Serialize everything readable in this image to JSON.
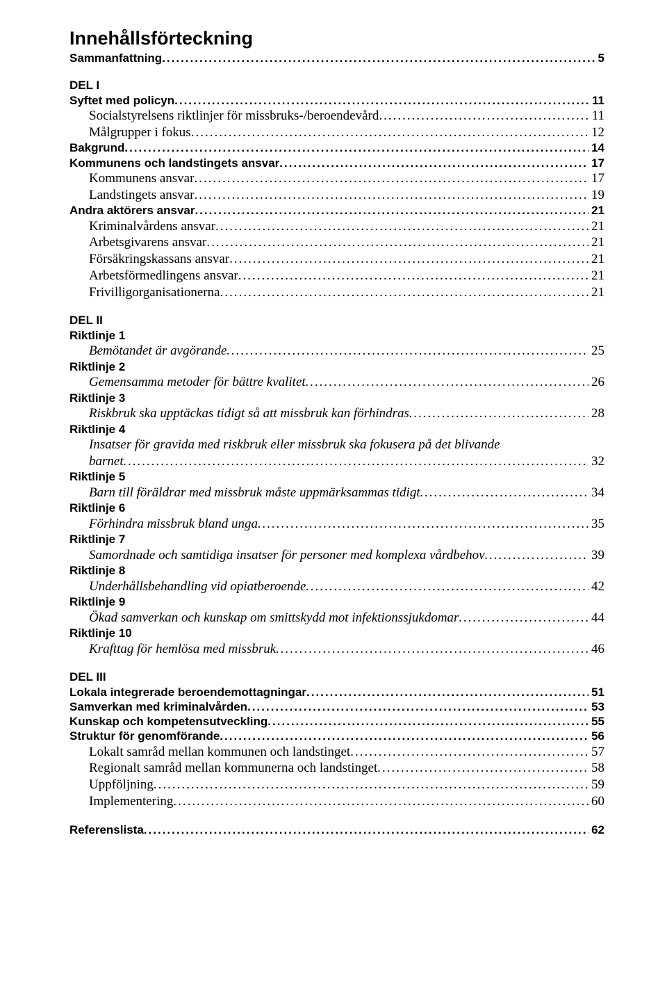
{
  "title": "Innehållsförteckning",
  "entries": [
    {
      "kind": "sans-bold",
      "indent": 0,
      "text": "Sammanfattning",
      "page": "5",
      "italic": false,
      "leader": true
    },
    {
      "kind": "spacer-md"
    },
    {
      "kind": "sans-bold",
      "indent": 0,
      "text": "DEL I",
      "page": "",
      "italic": false,
      "leader": false
    },
    {
      "kind": "sans-bold",
      "indent": 0,
      "text": "Syftet med policyn",
      "page": "11",
      "italic": false,
      "leader": true
    },
    {
      "kind": "serif",
      "indent": 1,
      "text": "Socialstyrelsens riktlinjer för missbruks-/beroendevård",
      "page": "11",
      "italic": false,
      "leader": true
    },
    {
      "kind": "serif",
      "indent": 1,
      "text": "Målgrupper i fokus",
      "page": "12",
      "italic": false,
      "leader": true
    },
    {
      "kind": "sans-bold",
      "indent": 0,
      "text": "Bakgrund",
      "page": "14",
      "italic": false,
      "leader": true
    },
    {
      "kind": "sans-bold",
      "indent": 0,
      "text": "Kommunens och landstingets ansvar",
      "page": "17",
      "italic": false,
      "leader": true
    },
    {
      "kind": "serif",
      "indent": 1,
      "text": "Kommunens ansvar",
      "page": "17",
      "italic": false,
      "leader": true
    },
    {
      "kind": "serif",
      "indent": 1,
      "text": "Landstingets ansvar",
      "page": "19",
      "italic": false,
      "leader": true
    },
    {
      "kind": "sans-bold",
      "indent": 0,
      "text": "Andra aktörers ansvar",
      "page": "21",
      "italic": false,
      "leader": true
    },
    {
      "kind": "serif",
      "indent": 1,
      "text": "Kriminalvårdens ansvar",
      "page": "21",
      "italic": false,
      "leader": true
    },
    {
      "kind": "serif",
      "indent": 1,
      "text": "Arbetsgivarens ansvar",
      "page": "21",
      "italic": false,
      "leader": true
    },
    {
      "kind": "serif",
      "indent": 1,
      "text": "Försäkringskassans ansvar",
      "page": "21",
      "italic": false,
      "leader": true
    },
    {
      "kind": "serif",
      "indent": 1,
      "text": "Arbetsförmedlingens ansvar",
      "page": "21",
      "italic": false,
      "leader": true
    },
    {
      "kind": "serif",
      "indent": 1,
      "text": "Frivilligorganisationerna",
      "page": "21",
      "italic": false,
      "leader": true
    },
    {
      "kind": "spacer-md"
    },
    {
      "kind": "sans-bold",
      "indent": 0,
      "text": "DEL II",
      "page": "",
      "italic": false,
      "leader": false
    },
    {
      "kind": "sans-bold",
      "indent": 0,
      "text": "Riktlinje 1",
      "page": "",
      "italic": false,
      "leader": false
    },
    {
      "kind": "serif",
      "indent": 1,
      "text": "Bemötandet är avgörande",
      "page": "25",
      "italic": true,
      "leader": true
    },
    {
      "kind": "sans-bold",
      "indent": 0,
      "text": "Riktlinje 2",
      "page": "",
      "italic": false,
      "leader": false
    },
    {
      "kind": "serif",
      "indent": 1,
      "text": "Gemensamma metoder för bättre kvalitet",
      "page": "26",
      "italic": true,
      "leader": true
    },
    {
      "kind": "sans-bold",
      "indent": 0,
      "text": "Riktlinje 3",
      "page": "",
      "italic": false,
      "leader": false
    },
    {
      "kind": "serif",
      "indent": 1,
      "text": "Riskbruk ska upptäckas tidigt så  att  missbruk kan förhindras",
      "page": "28",
      "italic": true,
      "leader": true
    },
    {
      "kind": "sans-bold",
      "indent": 0,
      "text": "Riktlinje 4",
      "page": "",
      "italic": false,
      "leader": false
    },
    {
      "kind": "serif-wrap",
      "indent": 1,
      "text": "Insatser för gravida med riskbruk eller missbruk ska fokusera på det blivande barnet",
      "page": "32",
      "italic": true,
      "leader": true
    },
    {
      "kind": "sans-bold",
      "indent": 0,
      "text": "Riktlinje 5",
      "page": "",
      "italic": false,
      "leader": false
    },
    {
      "kind": "serif",
      "indent": 1,
      "text": "Barn till föräldrar med missbruk måste uppmärksammas tidigt",
      "page": "34",
      "italic": true,
      "leader": true
    },
    {
      "kind": "sans-bold",
      "indent": 0,
      "text": "Riktlinje 6",
      "page": "",
      "italic": false,
      "leader": false
    },
    {
      "kind": "serif",
      "indent": 1,
      "text": "Förhindra missbruk bland unga",
      "page": "35",
      "italic": true,
      "leader": true
    },
    {
      "kind": "sans-bold",
      "indent": 0,
      "text": "Riktlinje 7",
      "page": "",
      "italic": false,
      "leader": false
    },
    {
      "kind": "serif",
      "indent": 1,
      "text": "Samordnade och samtidiga insatser för personer med komplexa vårdbehov",
      "page": "39",
      "italic": true,
      "leader": true
    },
    {
      "kind": "sans-bold",
      "indent": 0,
      "text": "Riktlinje 8",
      "page": "",
      "italic": false,
      "leader": false
    },
    {
      "kind": "serif",
      "indent": 1,
      "text": "Underhållsbehandling vid opiatberoende",
      "page": "42",
      "italic": true,
      "leader": true
    },
    {
      "kind": "sans-bold",
      "indent": 0,
      "text": "Riktlinje 9",
      "page": "",
      "italic": false,
      "leader": false
    },
    {
      "kind": "serif",
      "indent": 1,
      "text": "Ökad samverkan och kunskap om smittskydd mot infektionssjukdomar",
      "page": "44",
      "italic": true,
      "leader": true
    },
    {
      "kind": "sans-bold",
      "indent": 0,
      "text": "Riktlinje 10",
      "page": "",
      "italic": false,
      "leader": false
    },
    {
      "kind": "serif",
      "indent": 1,
      "text": "Krafttag för hemlösa med missbruk",
      "page": "46",
      "italic": true,
      "leader": true
    },
    {
      "kind": "spacer-md"
    },
    {
      "kind": "sans-bold",
      "indent": 0,
      "text": "DEL III",
      "page": "",
      "italic": false,
      "leader": false
    },
    {
      "kind": "sans-bold",
      "indent": 0,
      "text": "Lokala integrerade beroendemottagningar",
      "page": "51",
      "italic": false,
      "leader": true
    },
    {
      "kind": "sans-bold",
      "indent": 0,
      "text": "Samverkan med kriminalvården",
      "page": "53",
      "italic": false,
      "leader": true
    },
    {
      "kind": "sans-bold",
      "indent": 0,
      "text": "Kunskap och kompetensutveckling",
      "page": "55",
      "italic": false,
      "leader": true
    },
    {
      "kind": "sans-bold",
      "indent": 0,
      "text": "Struktur för genomförande",
      "page": "56",
      "italic": false,
      "leader": true
    },
    {
      "kind": "serif",
      "indent": 1,
      "text": "Lokalt samråd mellan kommunen och landstinget",
      "page": "57",
      "italic": false,
      "leader": true
    },
    {
      "kind": "serif",
      "indent": 1,
      "text": "Regionalt samråd mellan kommunerna och landstinget",
      "page": "58",
      "italic": false,
      "leader": true
    },
    {
      "kind": "serif",
      "indent": 1,
      "text": "Uppföljning",
      "page": "59",
      "italic": false,
      "leader": true
    },
    {
      "kind": "serif",
      "indent": 1,
      "text": "Implementering",
      "page": "60",
      "italic": false,
      "leader": true
    },
    {
      "kind": "spacer-md"
    },
    {
      "kind": "sans-bold",
      "indent": 0,
      "text": "Referenslista",
      "page": "62",
      "italic": false,
      "leader": true
    }
  ]
}
